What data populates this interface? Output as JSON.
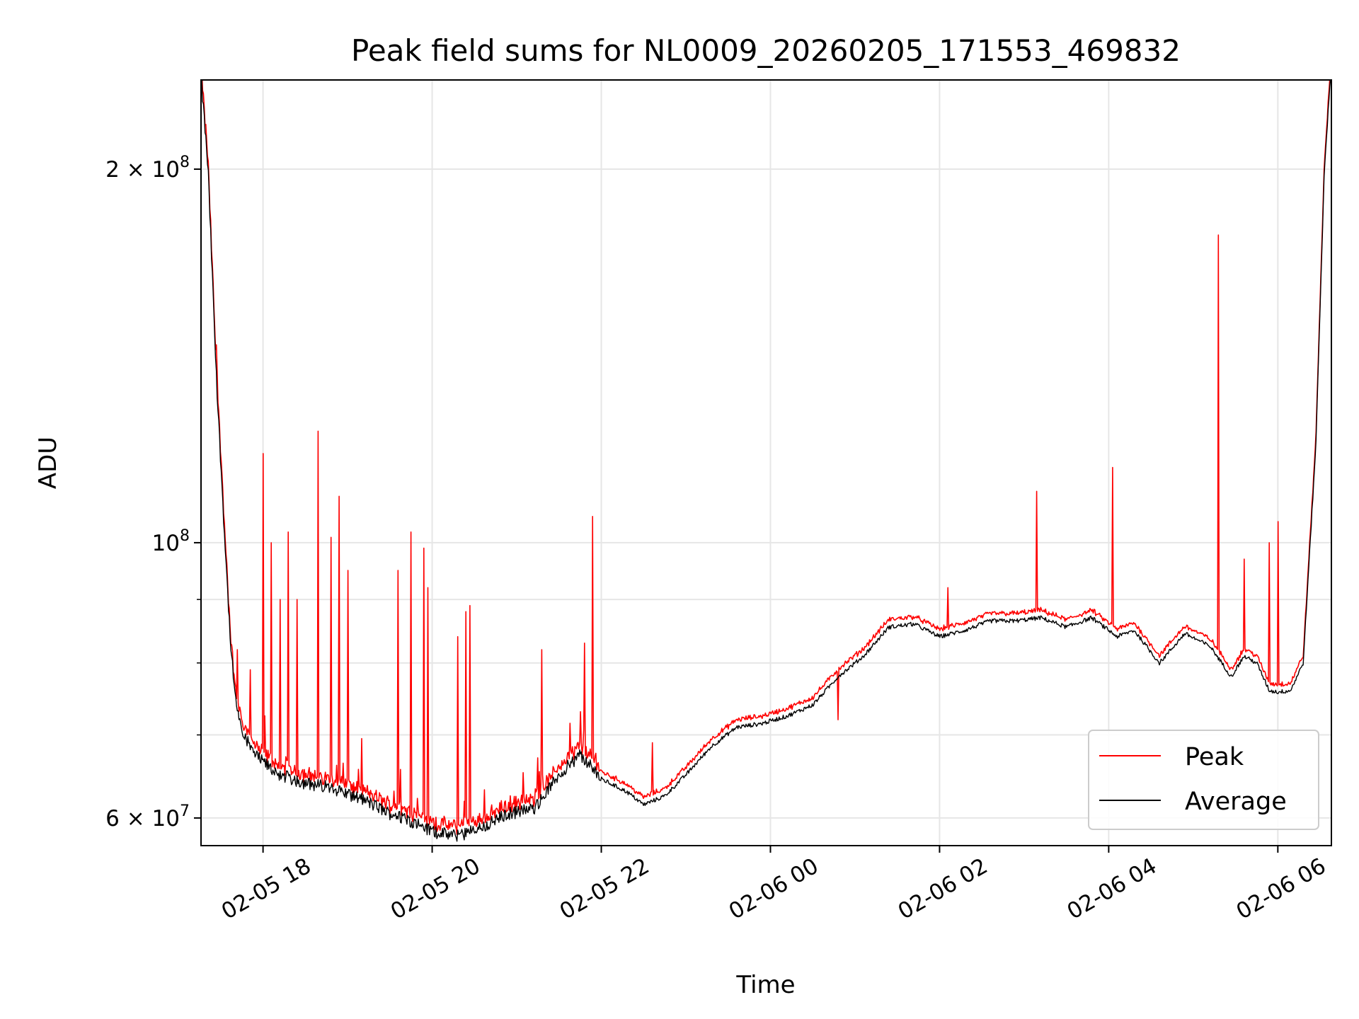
{
  "chart_data": {
    "type": "line",
    "title": "Peak field sums for NL0009_20260205_171553_469832",
    "xlabel": "Time",
    "ylabel": "ADU",
    "yscale": "log",
    "grid": true,
    "legend_placement": "lower-right",
    "colors": {
      "Peak": "#ff0000",
      "Average": "#000000"
    },
    "xlim": [
      "02-05 17:16",
      "02-06 06:38"
    ],
    "ylim": [
      57000000,
      236000000
    ],
    "x_ticks": [
      "02-05 18",
      "02-05 20",
      "02-05 22",
      "02-06 00",
      "02-06 02",
      "02-06 04",
      "02-06 06"
    ],
    "y_major_ticks": [
      {
        "value": 60000000,
        "mantissa": "6",
        "exponent": "7"
      },
      {
        "value": 100000000,
        "mantissa": "",
        "exponent": "8"
      },
      {
        "value": 200000000,
        "mantissa": "2",
        "exponent": "8"
      }
    ],
    "y_minor_ticks": [
      70000000,
      80000000,
      90000000
    ],
    "series": [
      {
        "name": "Average",
        "x_hours": [
          17.27,
          17.35,
          17.45,
          17.55,
          17.62,
          17.68,
          17.75,
          17.82,
          17.9,
          18.0,
          18.2,
          18.5,
          18.8,
          19.2,
          19.5,
          19.8,
          20.0,
          20.3,
          20.6,
          20.9,
          21.2,
          21.5,
          21.75,
          22.0,
          22.3,
          22.5,
          22.75,
          23.0,
          23.3,
          23.6,
          23.9,
          24.2,
          24.5,
          24.8,
          25.1,
          25.4,
          25.7,
          26.0,
          26.3,
          26.6,
          26.9,
          27.2,
          27.5,
          27.8,
          28.1,
          28.3,
          28.6,
          28.9,
          29.2,
          29.45,
          29.6,
          29.75,
          29.9,
          30.0,
          30.15,
          30.3,
          30.45,
          30.55,
          30.62
        ],
        "values": [
          236000000,
          200000000,
          135000000,
          100000000,
          82000000,
          74000000,
          71000000,
          69000000,
          67500000,
          66500000,
          65000000,
          64000000,
          63500000,
          62000000,
          60500000,
          59500000,
          58500000,
          58000000,
          59000000,
          60500000,
          61000000,
          65000000,
          67500000,
          64500000,
          63000000,
          61500000,
          62500000,
          65000000,
          68500000,
          71000000,
          71500000,
          72500000,
          74000000,
          78000000,
          81000000,
          85500000,
          86000000,
          84000000,
          85000000,
          86500000,
          86500000,
          87000000,
          85500000,
          87000000,
          84000000,
          85000000,
          80000000,
          84500000,
          82500000,
          78000000,
          81000000,
          80000000,
          76000000,
          75800000,
          76000000,
          80000000,
          120000000,
          200000000,
          236000000
        ]
      },
      {
        "name": "Peak",
        "baseline_offset_pct": 1.2,
        "spikes": [
          {
            "x_hour": 17.7,
            "value": 82000000
          },
          {
            "x_hour": 17.85,
            "value": 79000000
          },
          {
            "x_hour": 18.0,
            "value": 118000000
          },
          {
            "x_hour": 18.1,
            "value": 100000000
          },
          {
            "x_hour": 18.2,
            "value": 90000000
          },
          {
            "x_hour": 18.3,
            "value": 102000000
          },
          {
            "x_hour": 18.4,
            "value": 90000000
          },
          {
            "x_hour": 18.65,
            "value": 123000000
          },
          {
            "x_hour": 18.8,
            "value": 101000000
          },
          {
            "x_hour": 18.9,
            "value": 109000000
          },
          {
            "x_hour": 19.0,
            "value": 95000000
          },
          {
            "x_hour": 19.6,
            "value": 95000000
          },
          {
            "x_hour": 19.75,
            "value": 102000000
          },
          {
            "x_hour": 19.9,
            "value": 99000000
          },
          {
            "x_hour": 19.95,
            "value": 92000000
          },
          {
            "x_hour": 20.3,
            "value": 84000000
          },
          {
            "x_hour": 20.4,
            "value": 88000000
          },
          {
            "x_hour": 20.45,
            "value": 89000000
          },
          {
            "x_hour": 21.3,
            "value": 82000000
          },
          {
            "x_hour": 21.8,
            "value": 83000000
          },
          {
            "x_hour": 21.9,
            "value": 105000000
          },
          {
            "x_hour": 22.6,
            "value": 69000000
          },
          {
            "x_hour": 24.8,
            "value": 72000000
          },
          {
            "x_hour": 26.1,
            "value": 92000000
          },
          {
            "x_hour": 27.15,
            "value": 110000000
          },
          {
            "x_hour": 28.05,
            "value": 115000000
          },
          {
            "x_hour": 29.3,
            "value": 177000000
          },
          {
            "x_hour": 29.6,
            "value": 97000000
          },
          {
            "x_hour": 29.9,
            "value": 100000000
          },
          {
            "x_hour": 30.0,
            "value": 104000000
          }
        ]
      }
    ]
  }
}
